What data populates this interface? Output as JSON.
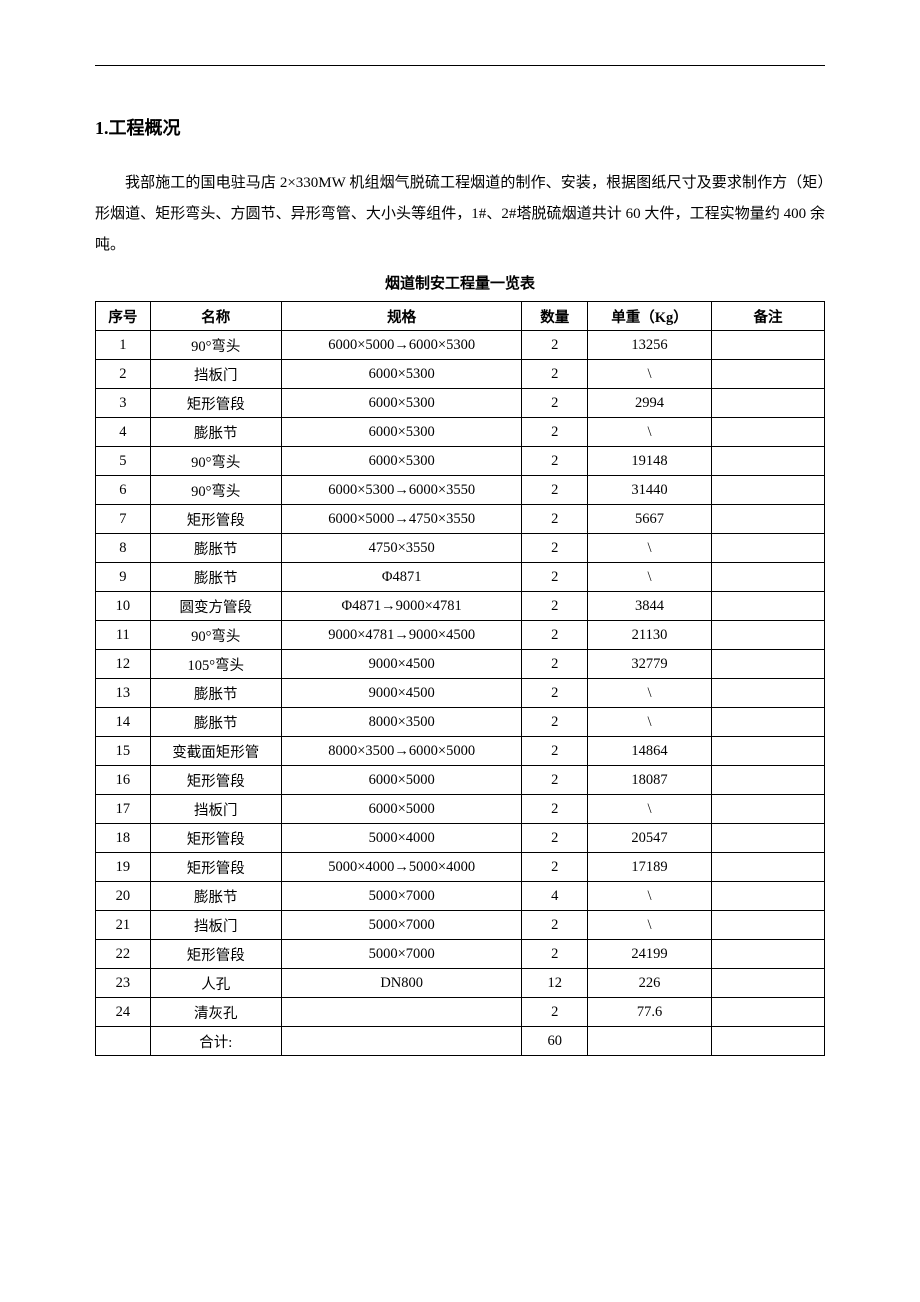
{
  "topRule": true,
  "heading": {
    "number": "1.",
    "title": "工程概况"
  },
  "paragraph": "我部施工的国电驻马店 2×330MW 机组烟气脱硫工程烟道的制作、安装，根据图纸尺寸及要求制作方（矩）形烟道、矩形弯头、方圆节、异形弯管、大小头等组件，1#、2#塔脱硫烟道共计 60 大件，工程实物量约 400 余吨。",
  "tableTitle": "烟道制安工程量一览表",
  "table": {
    "headers": {
      "seq": "序号",
      "name": "名称",
      "spec": "规格",
      "qty": "数量",
      "weight": "单重（Kg）",
      "remark": "备注"
    },
    "rows": [
      {
        "seq": "1",
        "name": "90°弯头",
        "spec": "6000×5000→6000×5300",
        "qty": "2",
        "weight": "13256",
        "remark": ""
      },
      {
        "seq": "2",
        "name": "挡板门",
        "spec": "6000×5300",
        "qty": "2",
        "weight": "\\",
        "remark": ""
      },
      {
        "seq": "3",
        "name": "矩形管段",
        "spec": "6000×5300",
        "qty": "2",
        "weight": "2994",
        "remark": ""
      },
      {
        "seq": "4",
        "name": "膨胀节",
        "spec": "6000×5300",
        "qty": "2",
        "weight": "\\",
        "remark": ""
      },
      {
        "seq": "5",
        "name": "90°弯头",
        "spec": "6000×5300",
        "qty": "2",
        "weight": "19148",
        "remark": ""
      },
      {
        "seq": "6",
        "name": "90°弯头",
        "spec": "6000×5300→6000×3550",
        "qty": "2",
        "weight": "31440",
        "remark": ""
      },
      {
        "seq": "7",
        "name": "矩形管段",
        "spec": "6000×5000→4750×3550",
        "qty": "2",
        "weight": "5667",
        "remark": ""
      },
      {
        "seq": "8",
        "name": "膨胀节",
        "spec": "4750×3550",
        "qty": "2",
        "weight": "\\",
        "remark": ""
      },
      {
        "seq": "9",
        "name": "膨胀节",
        "spec": "Φ4871",
        "qty": "2",
        "weight": "\\",
        "remark": ""
      },
      {
        "seq": "10",
        "name": "圆变方管段",
        "spec": "Φ4871→9000×4781",
        "qty": "2",
        "weight": "3844",
        "remark": ""
      },
      {
        "seq": "11",
        "name": "90°弯头",
        "spec": "9000×4781→9000×4500",
        "qty": "2",
        "weight": "21130",
        "remark": ""
      },
      {
        "seq": "12",
        "name": "105°弯头",
        "spec": "9000×4500",
        "qty": "2",
        "weight": "32779",
        "remark": ""
      },
      {
        "seq": "13",
        "name": "膨胀节",
        "spec": "9000×4500",
        "qty": "2",
        "weight": "\\",
        "remark": ""
      },
      {
        "seq": "14",
        "name": "膨胀节",
        "spec": "8000×3500",
        "qty": "2",
        "weight": "\\",
        "remark": ""
      },
      {
        "seq": "15",
        "name": "变截面矩形管",
        "spec": "8000×3500→6000×5000",
        "qty": "2",
        "weight": "14864",
        "remark": ""
      },
      {
        "seq": "16",
        "name": "矩形管段",
        "spec": "6000×5000",
        "qty": "2",
        "weight": "18087",
        "remark": ""
      },
      {
        "seq": "17",
        "name": "挡板门",
        "spec": "6000×5000",
        "qty": "2",
        "weight": "\\",
        "remark": ""
      },
      {
        "seq": "18",
        "name": "矩形管段",
        "spec": "5000×4000",
        "qty": "2",
        "weight": "20547",
        "remark": ""
      },
      {
        "seq": "19",
        "name": "矩形管段",
        "spec": "5000×4000→5000×4000",
        "qty": "2",
        "weight": "17189",
        "remark": ""
      },
      {
        "seq": "20",
        "name": "膨胀节",
        "spec": "5000×7000",
        "qty": "4",
        "weight": "\\",
        "remark": ""
      },
      {
        "seq": "21",
        "name": "挡板门",
        "spec": "5000×7000",
        "qty": "2",
        "weight": "\\",
        "remark": ""
      },
      {
        "seq": "22",
        "name": "矩形管段",
        "spec": "5000×7000",
        "qty": "2",
        "weight": "24199",
        "remark": ""
      },
      {
        "seq": "23",
        "name": "人孔",
        "spec": "DN800",
        "qty": "12",
        "weight": "226",
        "remark": ""
      },
      {
        "seq": "24",
        "name": "清灰孔",
        "spec": "",
        "qty": "2",
        "weight": "77.6",
        "remark": ""
      },
      {
        "seq": "",
        "name": "合计:",
        "spec": "",
        "qty": "60",
        "weight": "",
        "remark": ""
      }
    ]
  }
}
